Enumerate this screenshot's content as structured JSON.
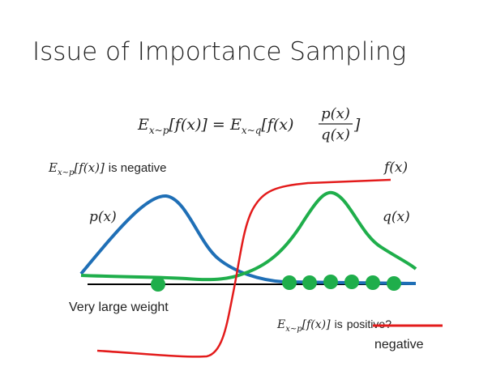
{
  "title": "Issue of Importance Sampling",
  "equation": {
    "lhs": {
      "symbol": "E",
      "subscript": "x~p",
      "body": "[f(x)] ="
    },
    "rhs": {
      "symbol": "E",
      "subscript": "x~q",
      "body": "[f(x)",
      "numerator": "p(x)",
      "denominator": "q(x)",
      "close": "]"
    }
  },
  "labels": {
    "negative_claim": {
      "symbol": "E",
      "subscript": "x~p",
      "body": "[f(x)]",
      "text": "is negative"
    },
    "f": "f(x)",
    "p": "p(x)",
    "q": "q(x)",
    "weight": "Very large weight",
    "positive_claim": {
      "symbol": "E",
      "subscript": "x~p",
      "body": "[f(x)]",
      "text": "is",
      "struck": "positive?",
      "correction": "negative"
    }
  }
}
